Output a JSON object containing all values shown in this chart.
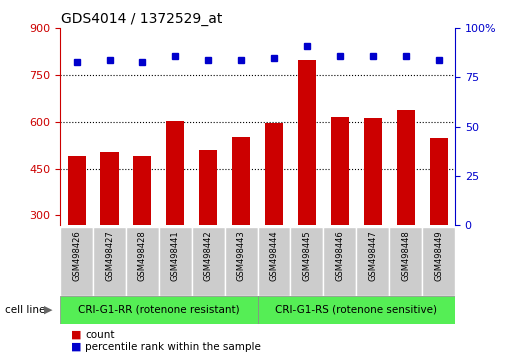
{
  "title": "GDS4014 / 1372529_at",
  "samples": [
    "GSM498426",
    "GSM498427",
    "GSM498428",
    "GSM498441",
    "GSM498442",
    "GSM498443",
    "GSM498444",
    "GSM498445",
    "GSM498446",
    "GSM498447",
    "GSM498448",
    "GSM498449"
  ],
  "counts": [
    490,
    505,
    492,
    603,
    510,
    550,
    598,
    800,
    615,
    612,
    638,
    548
  ],
  "percentile_ranks": [
    83,
    84,
    83,
    86,
    84,
    84,
    85,
    91,
    86,
    86,
    86,
    84
  ],
  "group1_label": "CRI-G1-RR (rotenone resistant)",
  "group2_label": "CRI-G1-RS (rotenone sensitive)",
  "group1_count": 6,
  "group2_count": 6,
  "bar_color": "#cc0000",
  "dot_color": "#0000cc",
  "group_bg_color": "#55ee55",
  "tick_bg_color": "#cccccc",
  "ylim_left": [
    270,
    900
  ],
  "ylim_right": [
    0,
    100
  ],
  "yticks_left": [
    300,
    450,
    600,
    750,
    900
  ],
  "yticks_right": [
    0,
    25,
    50,
    75,
    100
  ],
  "grid_values": [
    450,
    600,
    750
  ],
  "legend_count_label": "count",
  "legend_pct_label": "percentile rank within the sample",
  "cell_line_label": "cell line",
  "figsize": [
    5.23,
    3.54
  ],
  "dpi": 100
}
